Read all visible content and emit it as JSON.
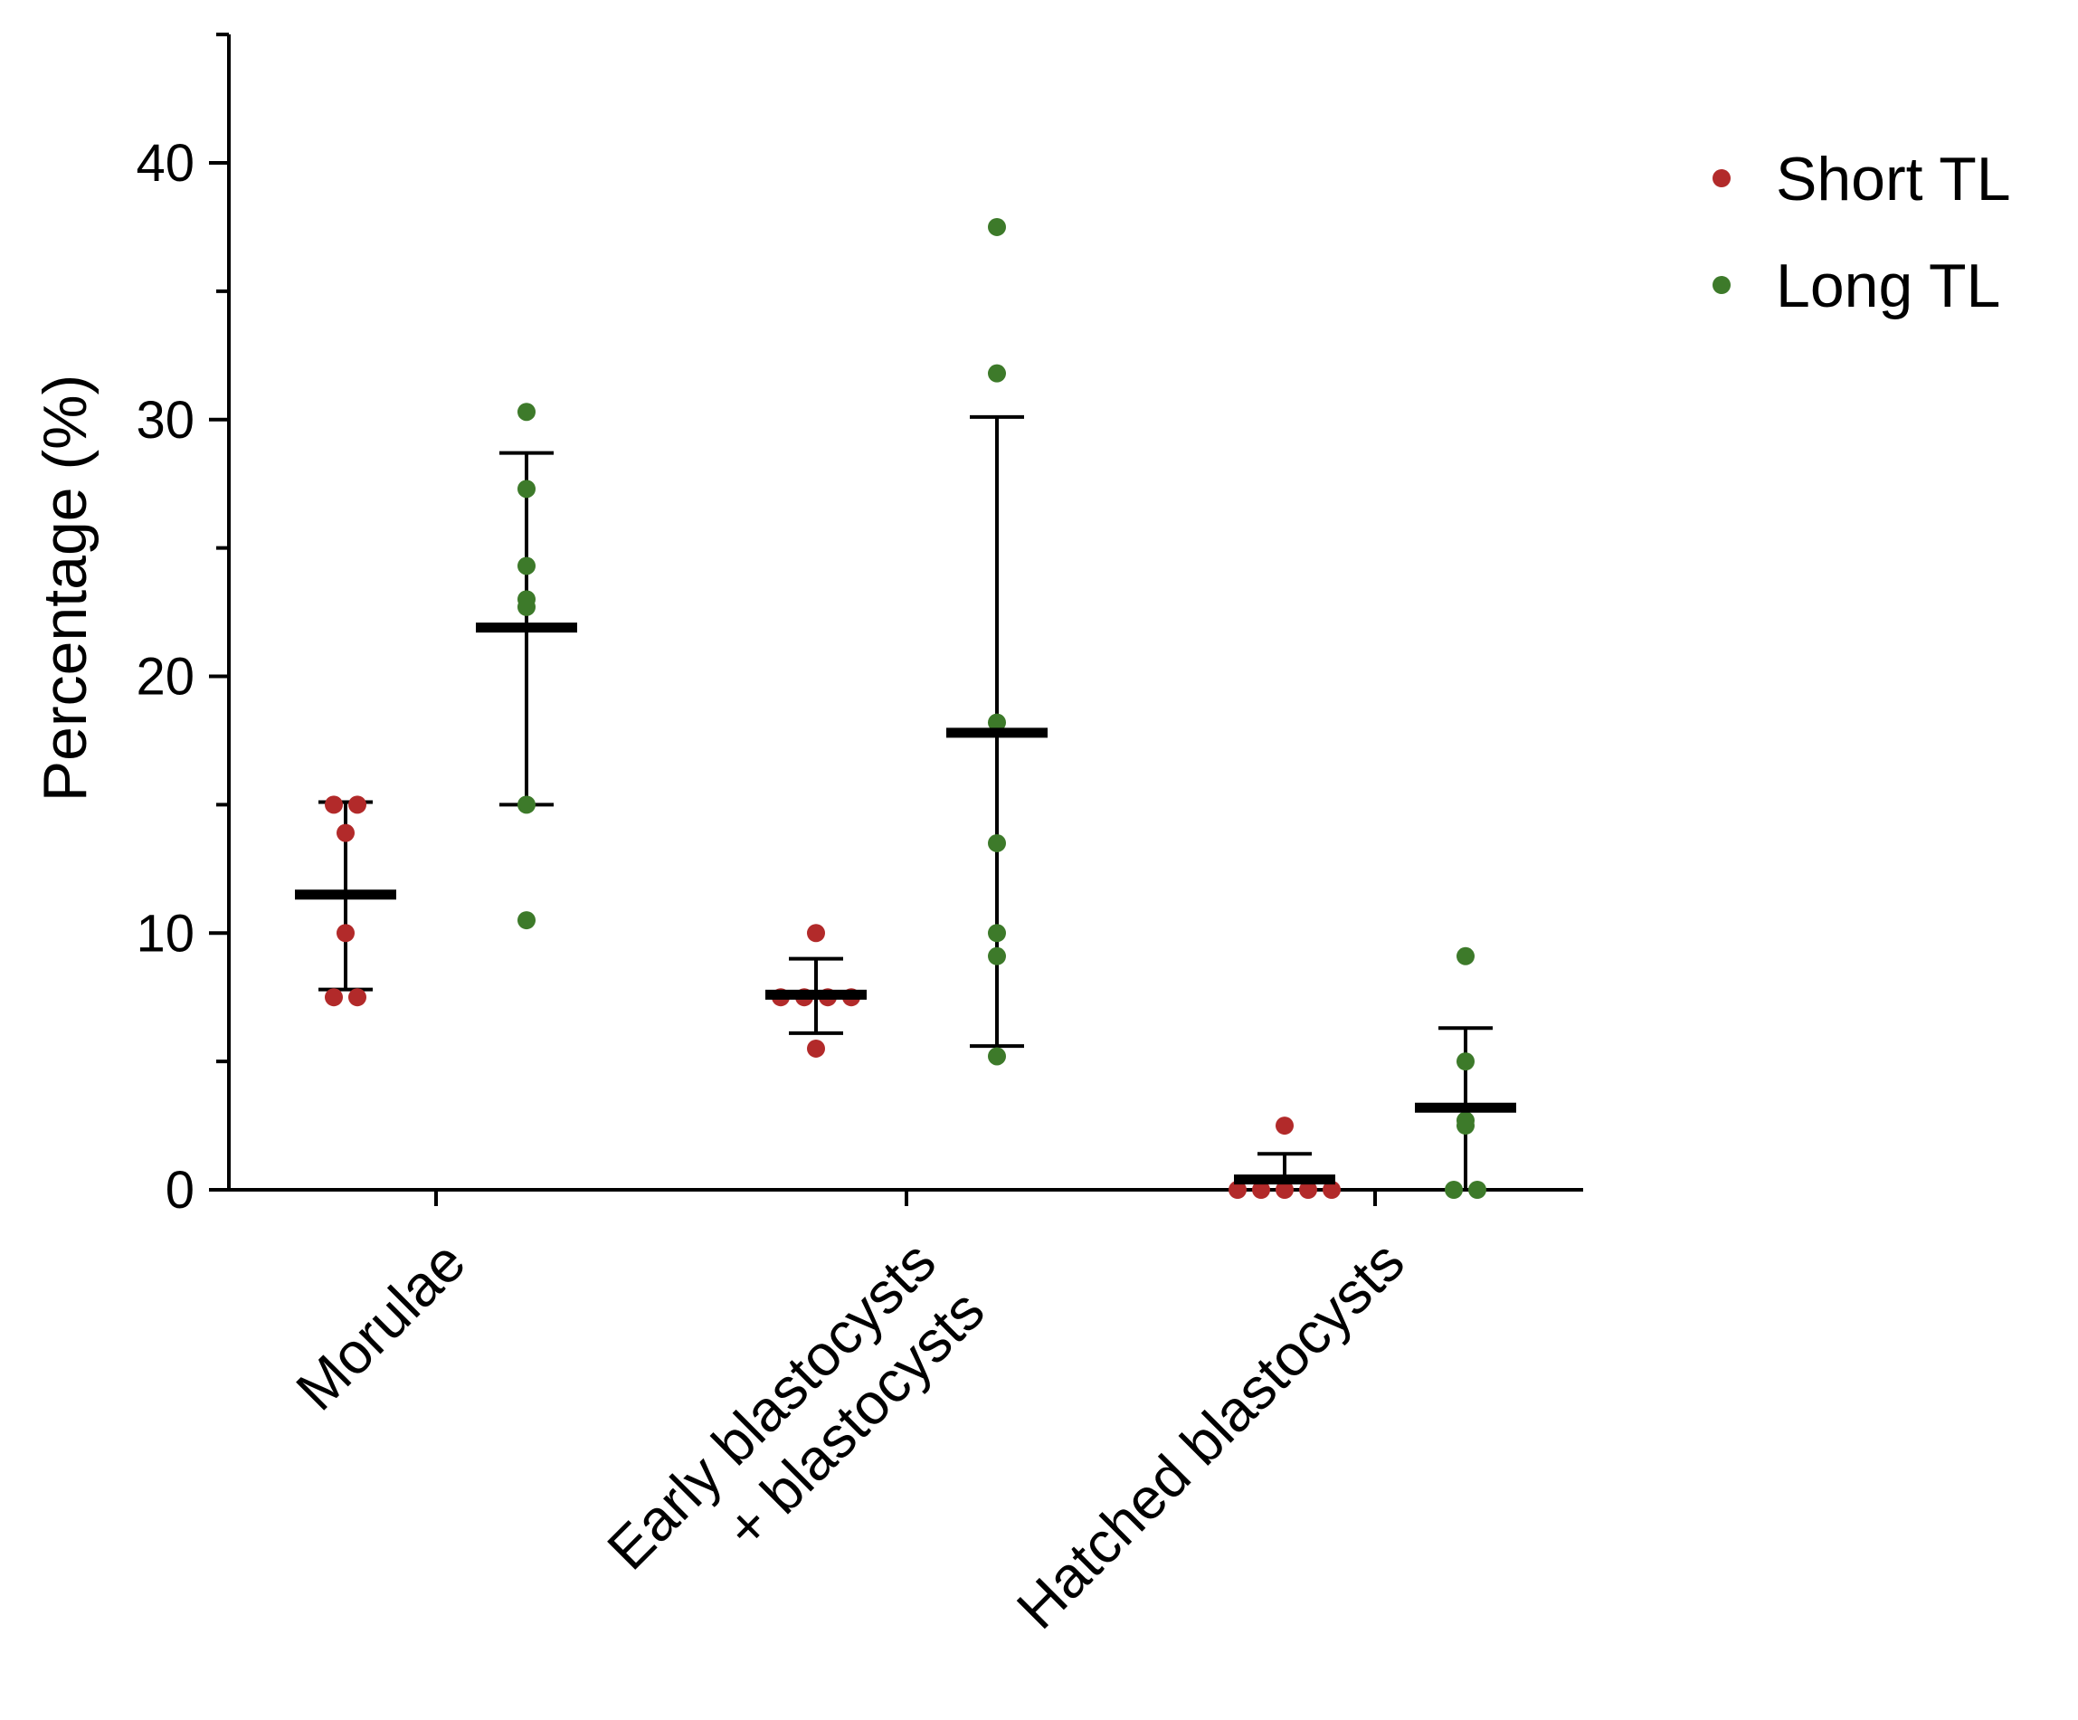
{
  "chart_data": {
    "type": "scatter",
    "subtype": "dot-plot-with-mean-and-sd",
    "title": "",
    "xlabel": "",
    "ylabel": "Percentage (%)",
    "ylim": [
      0,
      45
    ],
    "yticks": [
      0,
      10,
      20,
      30,
      40
    ],
    "grid": false,
    "legend_position": "top-right",
    "categories": [
      "Morulae",
      "Early blastocysts\n+ blastocysts",
      "Hatched blastocysts"
    ],
    "series": [
      {
        "name": "Short TL",
        "color": "#b22a2a",
        "groups": [
          {
            "values": [
              15.0,
              15.0,
              13.9,
              10.0,
              7.5,
              7.5
            ],
            "mean": 11.5,
            "sd_low": 7.8,
            "sd_high": 15.1
          },
          {
            "values": [
              10.0,
              7.5,
              7.5,
              7.5,
              7.5,
              5.5
            ],
            "mean": 7.6,
            "sd_low": 6.1,
            "sd_high": 9.0
          },
          {
            "values": [
              2.5,
              0.0,
              0.0,
              0.0,
              0.0,
              0.0
            ],
            "mean": 0.4,
            "sd_low": 0.0,
            "sd_high": 1.4
          }
        ]
      },
      {
        "name": "Long TL",
        "color": "#3d7a2a",
        "groups": [
          {
            "values": [
              30.3,
              27.3,
              24.3,
              23.0,
              22.7,
              15.0,
              10.5
            ],
            "mean": 21.9,
            "sd_low": 15.0,
            "sd_high": 28.7
          },
          {
            "values": [
              37.5,
              31.8,
              18.2,
              13.5,
              10.0,
              9.1,
              5.2
            ],
            "mean": 17.8,
            "sd_low": 5.6,
            "sd_high": 30.1
          },
          {
            "values": [
              9.1,
              5.0,
              2.7,
              2.5,
              0.0,
              0.0
            ],
            "mean": 3.2,
            "sd_low": 0.0,
            "sd_high": 6.3
          }
        ]
      }
    ]
  }
}
